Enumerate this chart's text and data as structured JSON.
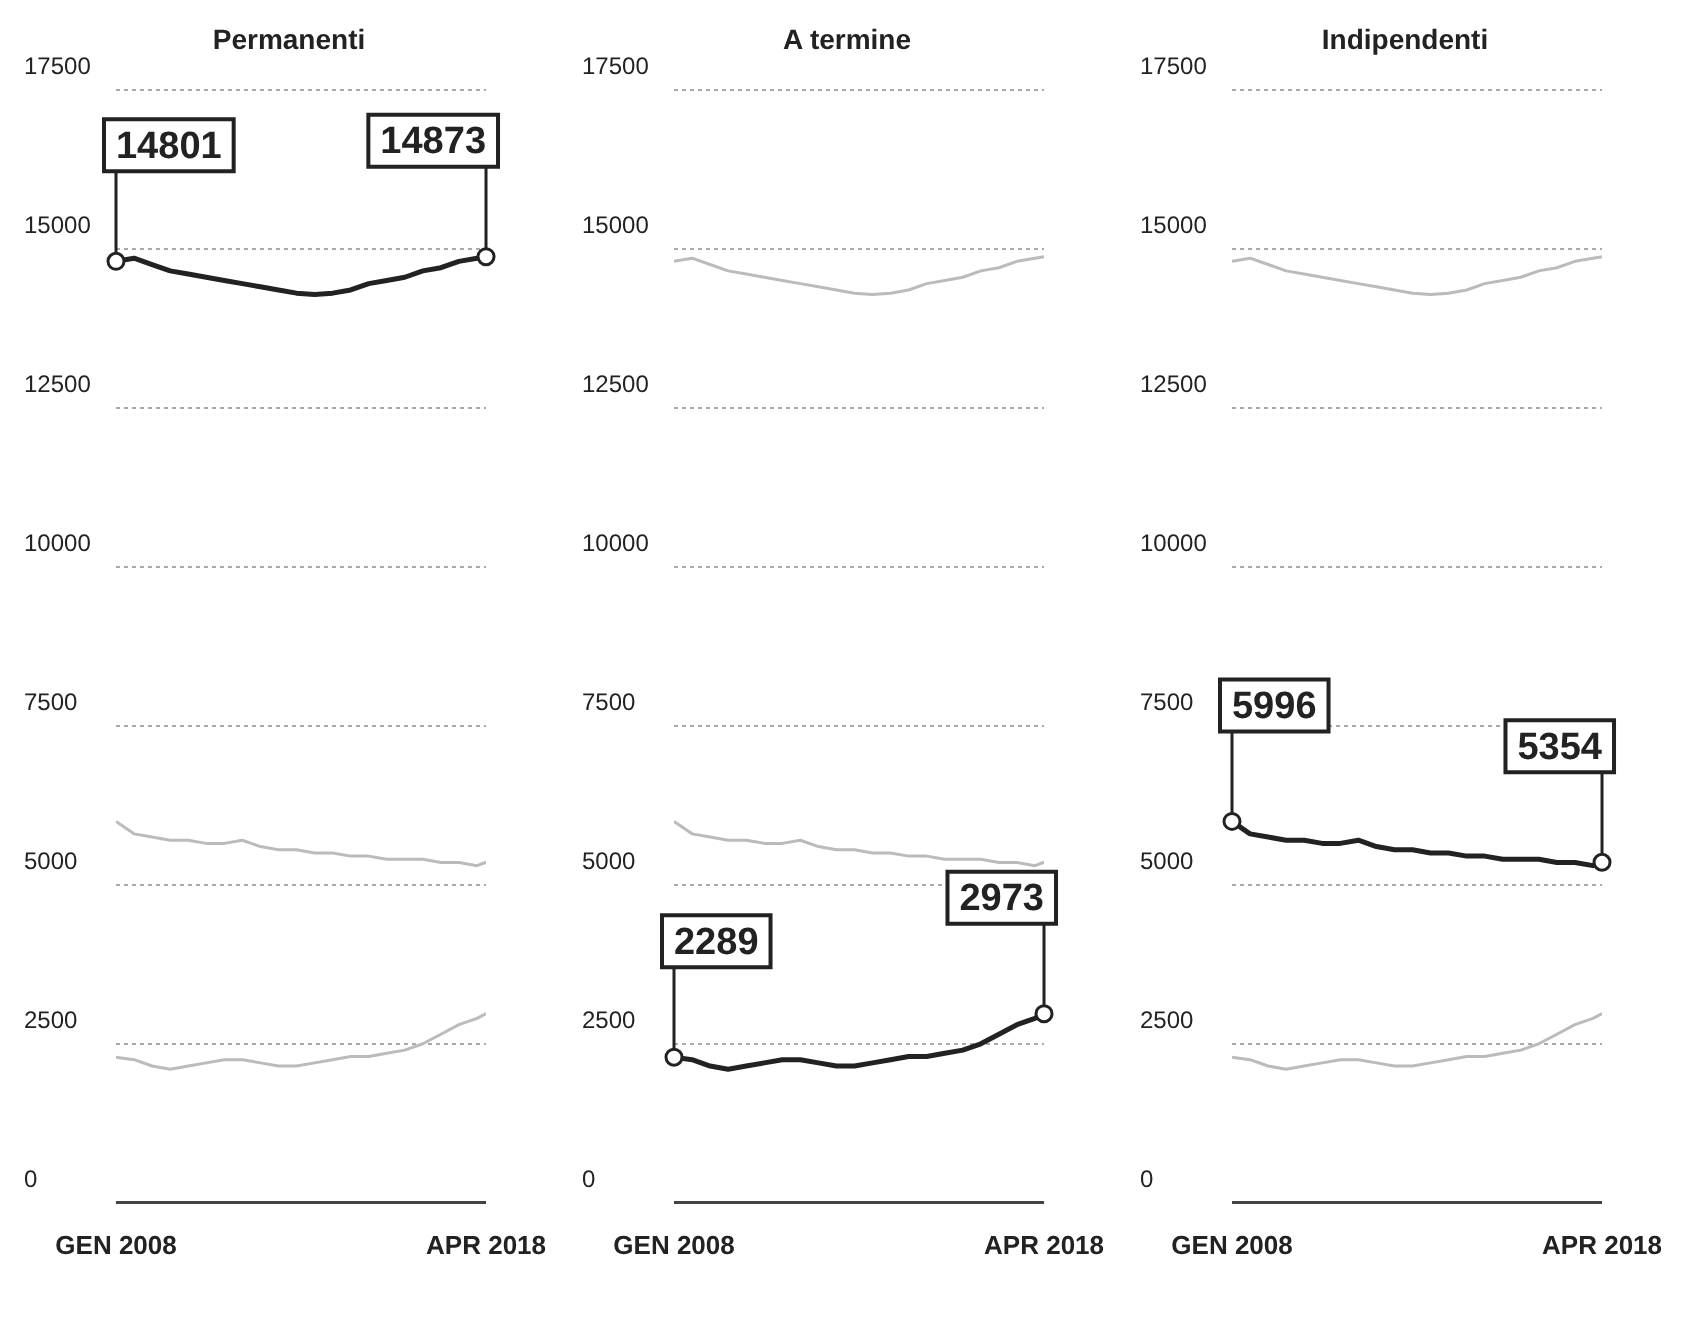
{
  "chart_data": [
    {
      "type": "line",
      "title": "Permanenti",
      "x": [
        "2008-01",
        "2008-07",
        "2009-01",
        "2009-07",
        "2010-01",
        "2010-07",
        "2011-01",
        "2011-07",
        "2012-01",
        "2012-07",
        "2013-01",
        "2013-07",
        "2014-01",
        "2014-07",
        "2015-01",
        "2015-07",
        "2016-01",
        "2016-07",
        "2017-01",
        "2017-07",
        "2018-01",
        "2018-04"
      ],
      "xlim": [
        "2008-01",
        "2018-04"
      ],
      "xticks": [
        {
          "value": "2008-01",
          "label": "GEN 2008"
        },
        {
          "value": "2018-04",
          "label": "APR 2018"
        }
      ],
      "ylim": [
        0,
        17500
      ],
      "yticks": [
        0,
        2500,
        5000,
        7500,
        10000,
        12500,
        15000,
        17500
      ],
      "grid": "y",
      "legend": false,
      "series": [
        {
          "color": "#222222",
          "values": [
            14801,
            14850,
            14750,
            14650,
            14600,
            14550,
            14500,
            14450,
            14400,
            14350,
            14300,
            14280,
            14300,
            14350,
            14450,
            14500,
            14550,
            14650,
            14700,
            14800,
            14850,
            14873
          ]
        },
        {
          "color": "#bbbbbb",
          "values": [
            2289,
            2250,
            2150,
            2100,
            2150,
            2200,
            2250,
            2250,
            2200,
            2150,
            2150,
            2200,
            2250,
            2300,
            2300,
            2350,
            2400,
            2500,
            2650,
            2800,
            2900,
            2973
          ]
        },
        {
          "color": "#bbbbbb",
          "values": [
            5996,
            5800,
            5750,
            5700,
            5700,
            5650,
            5650,
            5700,
            5600,
            5550,
            5550,
            5500,
            5500,
            5450,
            5450,
            5400,
            5400,
            5400,
            5350,
            5350,
            5300,
            5354
          ]
        }
      ],
      "annotations": [
        {
          "text": "14801",
          "x": "2008-01",
          "y": 14801
        },
        {
          "text": "14873",
          "x": "2018-04",
          "y": 14873
        }
      ]
    },
    {
      "type": "line",
      "title": "A termine",
      "x": [
        "2008-01",
        "2008-07",
        "2009-01",
        "2009-07",
        "2010-01",
        "2010-07",
        "2011-01",
        "2011-07",
        "2012-01",
        "2012-07",
        "2013-01",
        "2013-07",
        "2014-01",
        "2014-07",
        "2015-01",
        "2015-07",
        "2016-01",
        "2016-07",
        "2017-01",
        "2017-07",
        "2018-01",
        "2018-04"
      ],
      "xlim": [
        "2008-01",
        "2018-04"
      ],
      "xticks": [
        {
          "value": "2008-01",
          "label": "GEN 2008"
        },
        {
          "value": "2018-04",
          "label": "APR 2018"
        }
      ],
      "ylim": [
        0,
        17500
      ],
      "yticks": [
        0,
        2500,
        5000,
        7500,
        10000,
        12500,
        15000,
        17500
      ],
      "grid": "y",
      "legend": false,
      "series": [
        {
          "color": "#bbbbbb",
          "values": [
            14801,
            14850,
            14750,
            14650,
            14600,
            14550,
            14500,
            14450,
            14400,
            14350,
            14300,
            14280,
            14300,
            14350,
            14450,
            14500,
            14550,
            14650,
            14700,
            14800,
            14850,
            14873
          ]
        },
        {
          "color": "#222222",
          "values": [
            2289,
            2250,
            2150,
            2100,
            2150,
            2200,
            2250,
            2250,
            2200,
            2150,
            2150,
            2200,
            2250,
            2300,
            2300,
            2350,
            2400,
            2500,
            2650,
            2800,
            2900,
            2973
          ]
        },
        {
          "color": "#bbbbbb",
          "values": [
            5996,
            5800,
            5750,
            5700,
            5700,
            5650,
            5650,
            5700,
            5600,
            5550,
            5550,
            5500,
            5500,
            5450,
            5450,
            5400,
            5400,
            5400,
            5350,
            5350,
            5300,
            5354
          ]
        }
      ],
      "annotations": [
        {
          "text": "2289",
          "x": "2008-01",
          "y": 2289
        },
        {
          "text": "2973",
          "x": "2018-04",
          "y": 2973
        }
      ]
    },
    {
      "type": "line",
      "title": "Indipendenti",
      "x": [
        "2008-01",
        "2008-07",
        "2009-01",
        "2009-07",
        "2010-01",
        "2010-07",
        "2011-01",
        "2011-07",
        "2012-01",
        "2012-07",
        "2013-01",
        "2013-07",
        "2014-01",
        "2014-07",
        "2015-01",
        "2015-07",
        "2016-01",
        "2016-07",
        "2017-01",
        "2017-07",
        "2018-01",
        "2018-04"
      ],
      "xlim": [
        "2008-01",
        "2018-04"
      ],
      "xticks": [
        {
          "value": "2008-01",
          "label": "GEN 2008"
        },
        {
          "value": "2018-04",
          "label": "APR 2018"
        }
      ],
      "ylim": [
        0,
        17500
      ],
      "yticks": [
        0,
        2500,
        5000,
        7500,
        10000,
        12500,
        15000,
        17500
      ],
      "grid": "y",
      "legend": false,
      "series": [
        {
          "color": "#bbbbbb",
          "values": [
            14801,
            14850,
            14750,
            14650,
            14600,
            14550,
            14500,
            14450,
            14400,
            14350,
            14300,
            14280,
            14300,
            14350,
            14450,
            14500,
            14550,
            14650,
            14700,
            14800,
            14850,
            14873
          ]
        },
        {
          "color": "#bbbbbb",
          "values": [
            2289,
            2250,
            2150,
            2100,
            2150,
            2200,
            2250,
            2250,
            2200,
            2150,
            2150,
            2200,
            2250,
            2300,
            2300,
            2350,
            2400,
            2500,
            2650,
            2800,
            2900,
            2973
          ]
        },
        {
          "color": "#222222",
          "values": [
            5996,
            5800,
            5750,
            5700,
            5700,
            5650,
            5650,
            5700,
            5600,
            5550,
            5550,
            5500,
            5500,
            5450,
            5450,
            5400,
            5400,
            5400,
            5350,
            5350,
            5300,
            5354
          ]
        }
      ],
      "annotations": [
        {
          "text": "5996",
          "x": "2008-01",
          "y": 5996
        },
        {
          "text": "5354",
          "x": "2018-04",
          "y": 5354
        }
      ]
    }
  ]
}
